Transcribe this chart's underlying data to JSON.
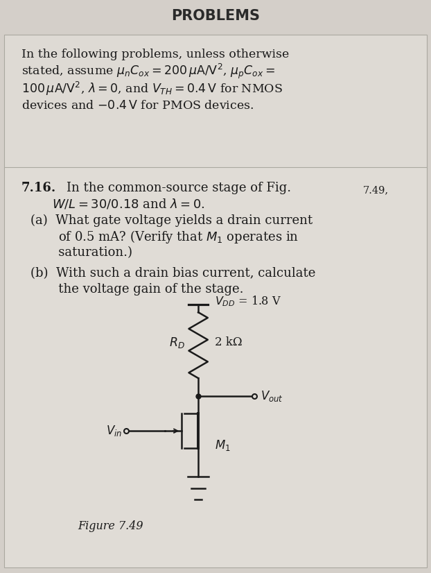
{
  "title": "PROBLEMS",
  "background_color": "#d4cfc9",
  "page_bg": "#e8e4de",
  "box1_bg": "#dedad4",
  "box2_bg": "#e0dcd6",
  "title_fontsize": 16,
  "body_fontsize": 13,
  "intro_text_lines": [
    "In the following problems, unless otherwise",
    "stated, assume $\\mu_n C_{ox} = 200\\,\\mu\\mathrm{A/V^2}$, $\\mu_p C_{ox} =$",
    "$100\\,\\mu\\mathrm{A/V^2}$, $\\lambda = 0$, and $V_{TH} = 0.4\\,\\mathrm{V}$ for NMOS",
    "devices and $-0.4\\,\\mathrm{V}$ for PMOS devices."
  ],
  "problem_number": "7.16.",
  "problem_intro": "In the common-source stage of Fig. 7.49,",
  "problem_line2": "$W/L = 30/0.18$ and $\\lambda = 0$.",
  "part_a_lines": [
    "(a)  What gate voltage yields a drain current",
    "       of 0.5 mA? (Verify that $M_1$ operates in",
    "       saturation.)"
  ],
  "part_b_lines": [
    "(b)  With such a drain bias current, calculate",
    "       the voltage gain of the stage."
  ],
  "fig_caption": "Figure 7.49",
  "vdd_label": "$V_{DD}$ = 1.8 V",
  "rd_label": "$R_D$",
  "rd_value": "2 kΩ",
  "vout_label": "$V_{out}$",
  "vin_label": "$V_{in}$",
  "m1_label": "$M_1$"
}
